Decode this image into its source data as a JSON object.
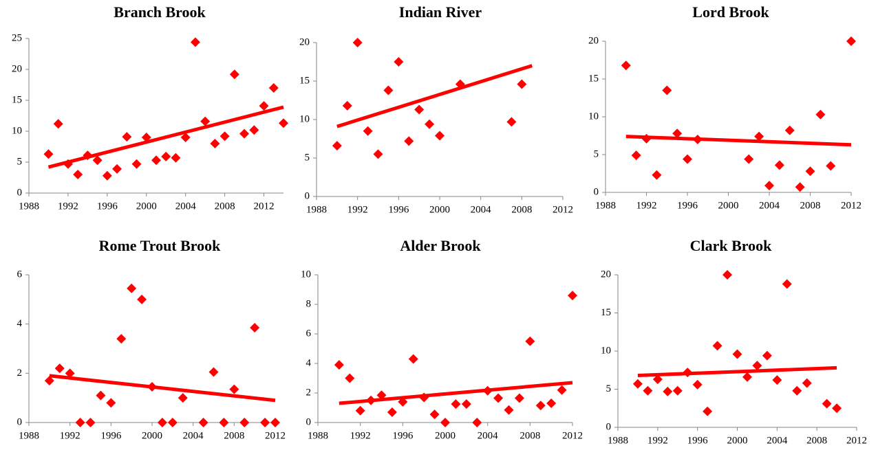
{
  "chart_data": [
    {
      "type": "scatter",
      "title": "Branch Brook",
      "color": "#ff0000",
      "x": [
        1990,
        1991,
        1992,
        1993,
        1994,
        1995,
        1996,
        1997,
        1998,
        1999,
        2000,
        2001,
        2002,
        2003,
        2004,
        2005,
        2006,
        2007,
        2008,
        2009,
        2010,
        2011,
        2012,
        2013,
        2014
      ],
      "values": [
        6.3,
        11.2,
        4.7,
        3,
        6.1,
        5.3,
        2.8,
        3.9,
        9.1,
        4.7,
        9,
        5.3,
        5.9,
        5.7,
        9,
        24.4,
        11.6,
        8,
        9.2,
        19.2,
        9.6,
        10.2,
        14.1,
        17,
        11.3
      ],
      "trend_x": [
        1990,
        2014
      ],
      "trend_values": [
        4.2,
        13.9
      ],
      "xlim": [
        1988,
        2014
      ],
      "ylim": [
        0,
        25
      ],
      "xticks": [
        1988,
        1992,
        1996,
        2000,
        2004,
        2008,
        2012
      ],
      "yticks": [
        0,
        5,
        10,
        15,
        20,
        25
      ]
    },
    {
      "type": "scatter",
      "title": "Indian River",
      "color": "#ff0000",
      "x": [
        1990,
        1991,
        1992,
        1993,
        1994,
        1995,
        1996,
        1997,
        1998,
        1999,
        2000,
        2002,
        2007,
        2008
      ],
      "values": [
        6.6,
        11.8,
        20,
        8.5,
        5.5,
        13.8,
        17.5,
        7.2,
        11.3,
        9.4,
        7.9,
        14.6,
        9.7,
        14.6
      ],
      "trend_x": [
        1990,
        2009
      ],
      "trend_values": [
        9.1,
        17
      ],
      "xlim": [
        1988,
        2012
      ],
      "ylim": [
        0,
        20
      ],
      "xticks": [
        1988,
        1992,
        1996,
        2000,
        2004,
        2008,
        2012
      ],
      "yticks": [
        0,
        5,
        10,
        15,
        20
      ]
    },
    {
      "type": "scatter",
      "title": "Lord Brook",
      "color": "#ff0000",
      "x": [
        1990,
        1991,
        1992,
        1993,
        1994,
        1995,
        1996,
        1997,
        2002,
        2003,
        2004,
        2005,
        2006,
        2007,
        2008,
        2009,
        2010,
        2012
      ],
      "values": [
        16.8,
        4.9,
        7.1,
        2.3,
        13.5,
        7.8,
        4.4,
        7,
        4.4,
        7.4,
        0.9,
        3.6,
        8.2,
        0.7,
        2.8,
        10.3,
        3.5,
        20
      ],
      "trend_x": [
        1990,
        2012
      ],
      "trend_values": [
        7.4,
        6.3
      ],
      "xlim": [
        1988,
        2012
      ],
      "ylim": [
        0,
        20
      ],
      "xticks": [
        1988,
        1992,
        1996,
        2000,
        2004,
        2008,
        2012
      ],
      "yticks": [
        0,
        5,
        10,
        15,
        20
      ]
    },
    {
      "type": "scatter",
      "title": "Rome Trout Brook",
      "color": "#ff0000",
      "x": [
        1990,
        1991,
        1992,
        1993,
        1994,
        1995,
        1996,
        1997,
        1998,
        1999,
        2000,
        2001,
        2002,
        2003,
        2005,
        2006,
        2007,
        2008,
        2009,
        2010,
        2011,
        2012
      ],
      "values": [
        1.7,
        2.2,
        2,
        0,
        0,
        1.1,
        0.8,
        3.4,
        5.45,
        5,
        1.45,
        0,
        0,
        1,
        0,
        2.05,
        0,
        1.35,
        0,
        3.85,
        0,
        0
      ],
      "trend_x": [
        1990,
        2012
      ],
      "trend_values": [
        1.9,
        0.9
      ],
      "xlim": [
        1988,
        2012
      ],
      "ylim": [
        0,
        6
      ],
      "xticks": [
        1988,
        1992,
        1996,
        2000,
        2004,
        2008,
        2012
      ],
      "yticks": [
        0,
        2,
        4,
        6
      ]
    },
    {
      "type": "scatter",
      "title": "Alder Brook",
      "color": "#ff0000",
      "x": [
        1990,
        1991,
        1992,
        1993,
        1994,
        1995,
        1996,
        1997,
        1998,
        1999,
        2000,
        2001,
        2002,
        2003,
        2004,
        2005,
        2006,
        2007,
        2008,
        2009,
        2010,
        2011,
        2012
      ],
      "values": [
        3.9,
        3,
        0.8,
        1.5,
        1.85,
        0.7,
        1.4,
        4.3,
        1.7,
        0.55,
        0,
        1.25,
        1.25,
        0,
        2.15,
        1.65,
        0.85,
        1.65,
        5.5,
        1.15,
        1.3,
        2.2,
        8.6
      ],
      "trend_x": [
        1990,
        2012
      ],
      "trend_values": [
        1.3,
        2.7
      ],
      "xlim": [
        1988,
        2012
      ],
      "ylim": [
        0,
        10
      ],
      "xticks": [
        1988,
        1992,
        1996,
        2000,
        2004,
        2008,
        2012
      ],
      "yticks": [
        0,
        2,
        4,
        6,
        8,
        10
      ]
    },
    {
      "type": "scatter",
      "title": "Clark Brook",
      "color": "#ff0000",
      "x": [
        1990,
        1991,
        1992,
        1993,
        1994,
        1995,
        1996,
        1997,
        1998,
        1999,
        2000,
        2001,
        2002,
        2003,
        2004,
        2005,
        2006,
        2007,
        2009,
        2010
      ],
      "values": [
        5.7,
        4.8,
        6.3,
        4.7,
        4.8,
        7.2,
        5.6,
        2.1,
        10.7,
        20,
        9.6,
        6.6,
        8.1,
        9.4,
        6.2,
        18.8,
        4.8,
        5.8,
        3.1,
        2.5
      ],
      "trend_x": [
        1990,
        2010
      ],
      "trend_values": [
        6.8,
        7.8
      ],
      "xlim": [
        1988,
        2012
      ],
      "ylim": [
        0,
        20
      ],
      "xticks": [
        1988,
        1992,
        1996,
        2000,
        2004,
        2008,
        2012
      ],
      "yticks": [
        0,
        5,
        10,
        15,
        20
      ]
    }
  ]
}
